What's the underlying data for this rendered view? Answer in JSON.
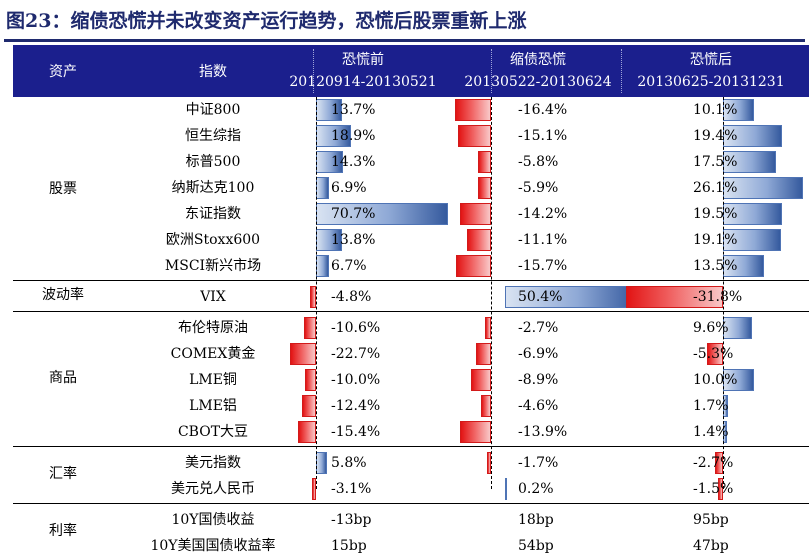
{
  "title": "图23：缩债恐慌并未改变资产运行趋势，恐慌后股票重新上涨",
  "header": {
    "asset": "资产",
    "index": "指数",
    "periods": [
      {
        "name": "恐慌前",
        "range": "20120914-20130521"
      },
      {
        "name": "缩债恐慌",
        "range": "20130522-20130624"
      },
      {
        "name": "恐慌后",
        "range": "20130625-20131231"
      }
    ]
  },
  "groups": [
    {
      "label": "股票",
      "rows": [
        {
          "name": "中证800",
          "v": [
            "13.7%",
            "-16.4%",
            "10.1%"
          ],
          "n": [
            13.7,
            -16.4,
            10.1
          ]
        },
        {
          "name": "恒生综指",
          "v": [
            "18.9%",
            "-15.1%",
            "19.4%"
          ],
          "n": [
            18.9,
            -15.1,
            19.4
          ]
        },
        {
          "name": "标普500",
          "v": [
            "14.3%",
            "-5.8%",
            "17.5%"
          ],
          "n": [
            14.3,
            -5.8,
            17.5
          ]
        },
        {
          "name": "纳斯达克100",
          "v": [
            "6.9%",
            "-5.9%",
            "26.1%"
          ],
          "n": [
            6.9,
            -5.9,
            26.1
          ]
        },
        {
          "name": "东证指数",
          "v": [
            "70.7%",
            "-14.2%",
            "19.5%"
          ],
          "n": [
            70.7,
            -14.2,
            19.5
          ]
        },
        {
          "name": "欧洲Stoxx600",
          "v": [
            "13.8%",
            "-11.1%",
            "19.1%"
          ],
          "n": [
            13.8,
            -11.1,
            19.1
          ]
        },
        {
          "name": "MSCI新兴市场",
          "v": [
            "6.7%",
            "-15.7%",
            "13.5%"
          ],
          "n": [
            6.7,
            -15.7,
            13.5
          ]
        }
      ]
    },
    {
      "label": "波动率",
      "rows": [
        {
          "name": "VIX",
          "v": [
            "-4.8%",
            "50.4%",
            "-31.8%"
          ],
          "n": [
            -4.8,
            50.4,
            -31.8
          ]
        }
      ]
    },
    {
      "label": "商品",
      "rows": [
        {
          "name": "布伦特原油",
          "v": [
            "-10.6%",
            "-2.7%",
            "9.6%"
          ],
          "n": [
            -10.6,
            -2.7,
            9.6
          ]
        },
        {
          "name": "COMEX黄金",
          "v": [
            "-22.7%",
            "-6.9%",
            "-5.3%"
          ],
          "n": [
            -22.7,
            -6.9,
            -5.3
          ]
        },
        {
          "name": "LME铜",
          "v": [
            "-10.0%",
            "-8.9%",
            "10.0%"
          ],
          "n": [
            -10.0,
            -8.9,
            10.0
          ]
        },
        {
          "name": "LME铝",
          "v": [
            "-12.4%",
            "-4.6%",
            "1.7%"
          ],
          "n": [
            -12.4,
            -4.6,
            1.7
          ]
        },
        {
          "name": "CBOT大豆",
          "v": [
            "-15.4%",
            "-13.9%",
            "1.4%"
          ],
          "n": [
            -15.4,
            -13.9,
            1.4
          ]
        }
      ]
    },
    {
      "label": "汇率",
      "rows": [
        {
          "name": "美元指数",
          "v": [
            "5.8%",
            "-1.7%",
            "-2.7%"
          ],
          "n": [
            5.8,
            -1.7,
            -2.7
          ]
        },
        {
          "name": "美元兑人民币",
          "v": [
            "-3.1%",
            "0.2%",
            "-1.5%"
          ],
          "n": [
            -3.1,
            0.2,
            -1.5
          ]
        }
      ]
    },
    {
      "label": "利率",
      "rows": [
        {
          "name": "10Y国债收益",
          "v": [
            "-13bp",
            "18bp",
            "95bp"
          ]
        },
        {
          "name": "10Y美国国债收益率",
          "v": [
            "15bp",
            "54bp",
            "47bp"
          ]
        }
      ]
    }
  ]
}
